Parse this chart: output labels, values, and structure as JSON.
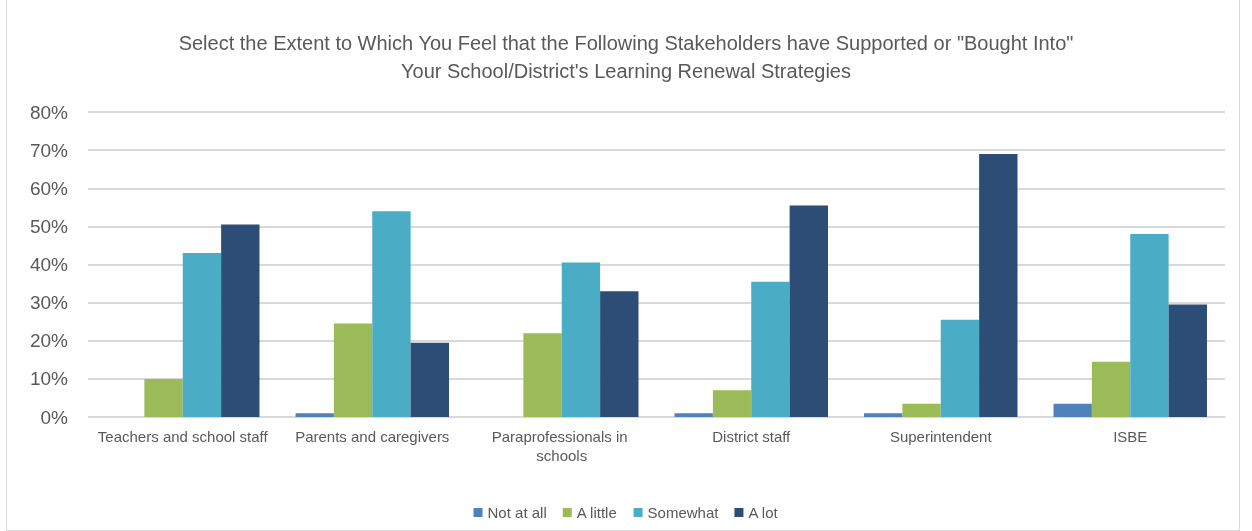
{
  "chart_data": {
    "type": "bar",
    "title": "Select the Extent to Which You Feel that the Following Stakeholders have Supported or \"Bought Into\" Your School/District's Learning Renewal Strategies",
    "categories": [
      "Teachers and school staff",
      "Parents and caregivers",
      "Paraprofessionals in schools",
      "District staff",
      "Superintendent",
      "ISBE"
    ],
    "series": [
      {
        "name": "Not at all",
        "color": "#4f81bd",
        "values": [
          0,
          1,
          0,
          1,
          1,
          3.5
        ]
      },
      {
        "name": "A little",
        "color": "#9bbb59",
        "values": [
          10,
          24.5,
          22,
          7,
          3.5,
          14.5
        ]
      },
      {
        "name": "Somewhat",
        "color": "#4bacc6",
        "values": [
          43,
          54,
          40.5,
          35.5,
          25.5,
          48
        ]
      },
      {
        "name": "A lot",
        "color": "#2c4d75",
        "values": [
          50.5,
          19.5,
          33,
          55.5,
          69,
          29.5
        ]
      }
    ],
    "ylim": [
      0,
      80
    ],
    "yticks": [
      {
        "value": 0,
        "label": "0%"
      },
      {
        "value": 10,
        "label": "10%"
      },
      {
        "value": 20,
        "label": "20%"
      },
      {
        "value": 30,
        "label": "30%"
      },
      {
        "value": 40,
        "label": "40%"
      },
      {
        "value": 50,
        "label": "50%"
      },
      {
        "value": 60,
        "label": "60%"
      },
      {
        "value": 70,
        "label": "70%"
      },
      {
        "value": 80,
        "label": "80%"
      }
    ],
    "grid": "y",
    "legend": "bottom"
  }
}
